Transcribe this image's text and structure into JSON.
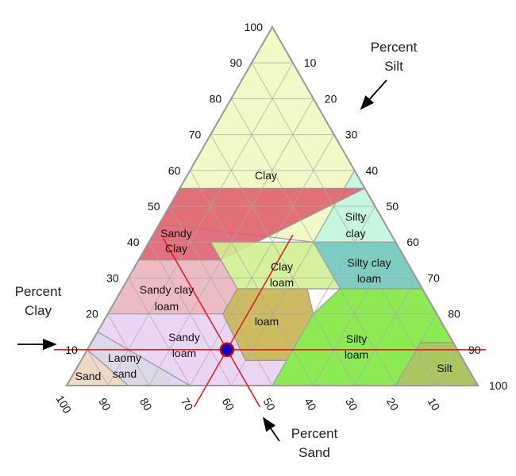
{
  "colors": {
    "clay": "#f0f8c0",
    "silty_clay": "#c0f5e0",
    "silty_clay_loam": "#70c8bc",
    "sandy_clay": "#e06070",
    "clay_loam": "#d0f090",
    "sandy_clay_loam": "#eab4bc",
    "loam": "#c8b450",
    "sandy_loam": "#e8d0f4",
    "loamy_sand": "#d8d4e4",
    "sand": "#ecd4c0",
    "silt_loam": "#80e840",
    "silt": "#a0c050",
    "marker_fill": "#0000cc",
    "marker_stroke": "#cc0000",
    "lines": "#e02020"
  },
  "ticks": {
    "clay": [
      "10",
      "20",
      "30",
      "40",
      "50",
      "60",
      "70",
      "80",
      "90",
      "100"
    ],
    "silt": [
      "10",
      "20",
      "30",
      "40",
      "50",
      "60",
      "70",
      "80",
      "90",
      "100"
    ],
    "sand": [
      "10",
      "20",
      "30",
      "40",
      "50",
      "60",
      "70",
      "80",
      "90",
      "100"
    ]
  },
  "zones": {
    "clay": "Clay",
    "silty_clay_1": "Silty",
    "silty_clay_2": "clay",
    "sandy_clay_1": "Sandy",
    "sandy_clay_2": "Clay",
    "silty_clay_loam_1": "Silty clay",
    "silty_clay_loam_2": "loam",
    "clay_loam_1": "Clay",
    "clay_loam_2": "loam",
    "sandy_clay_loam_1": "Sandy clay",
    "sandy_clay_loam_2": "loam",
    "loam": "loam",
    "sandy_loam_1": "Sandy",
    "sandy_loam_2": "loam",
    "silty_loam_1": "Silty",
    "silty_loam_2": "loam",
    "loamy_sand_1": "Laomy",
    "loamy_sand_2": "sand",
    "sand": "Sand",
    "silt": "Silt"
  },
  "axis_labels": {
    "silt_1": "Percent",
    "silt_2": "Silt",
    "clay_1": "Percent",
    "clay_2": "Clay",
    "sand_1": "Percent",
    "sand_2": "Sand"
  },
  "sample_point": {
    "clay": 10,
    "silt": 34,
    "sand": 56
  }
}
